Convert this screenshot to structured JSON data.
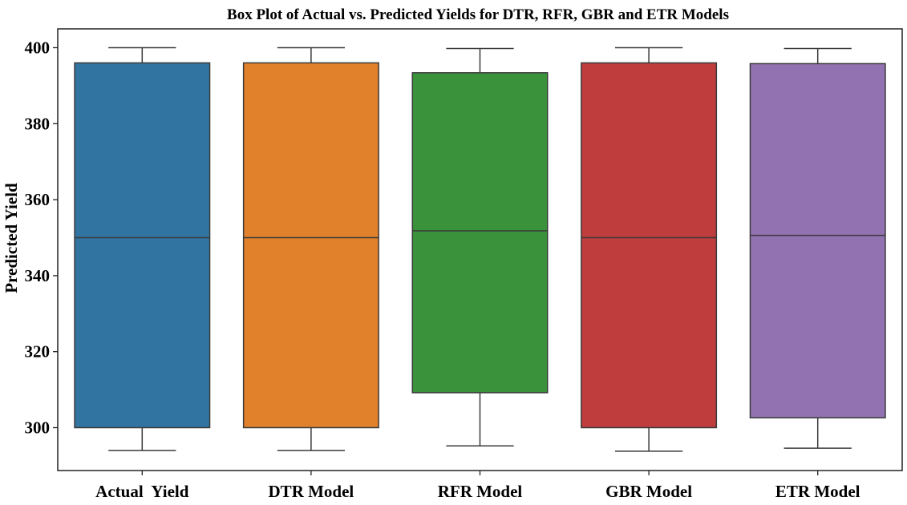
{
  "chart_data": {
    "type": "box",
    "title": "Box Plot of Actual vs. Predicted Yields for DTR, RFR, GBR and ETR Models",
    "xlabel": "",
    "ylabel": "Predicted Yield",
    "ylim": [
      288,
      404
    ],
    "yticks": [
      300,
      320,
      340,
      360,
      380,
      400
    ],
    "grid": false,
    "legend": "none",
    "categories": [
      "Actual  Yield",
      "DTR Model",
      "RFR Model",
      "GBR Model",
      "ETR Model"
    ],
    "boxes": [
      {
        "category": "Actual  Yield",
        "min": 294,
        "q1": 300,
        "median": 350,
        "q3": 396,
        "max": 400,
        "color": "#3274a1"
      },
      {
        "category": "DTR Model",
        "min": 294,
        "q1": 300,
        "median": 350,
        "q3": 396,
        "max": 400,
        "color": "#e1812c"
      },
      {
        "category": "RFR Model",
        "min": 295.2,
        "q1": 309.2,
        "median": 351.8,
        "q3": 393.4,
        "max": 399.8,
        "color": "#3a923a"
      },
      {
        "category": "GBR Model",
        "min": 293.8,
        "q1": 300,
        "median": 350,
        "q3": 396,
        "max": 400,
        "color": "#c03d3e"
      },
      {
        "category": "ETR Model",
        "min": 294.6,
        "q1": 302.6,
        "median": 350.6,
        "q3": 395.8,
        "max": 399.8,
        "color": "#9372b2"
      }
    ]
  }
}
